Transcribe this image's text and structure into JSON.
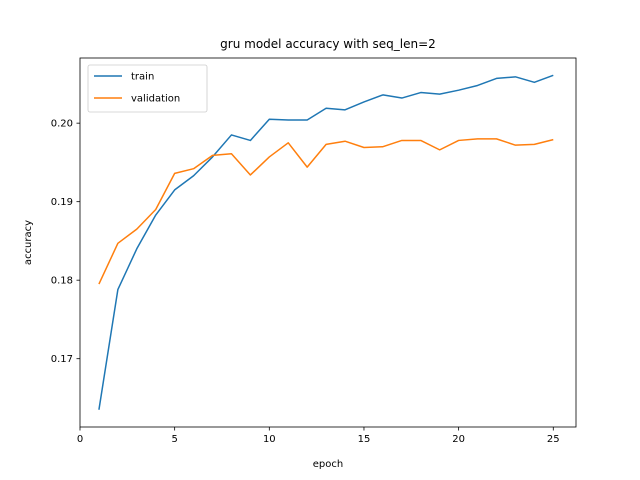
{
  "chart_data": {
    "type": "line",
    "title": "gru model accuracy with seq_len=2",
    "xlabel": "epoch",
    "ylabel": "accuracy",
    "xlim": [
      0,
      26.2
    ],
    "ylim": [
      0.1613,
      0.2083
    ],
    "xticks": [
      0,
      5,
      10,
      15,
      20,
      25
    ],
    "yticks": [
      0.17,
      0.18,
      0.19,
      0.2
    ],
    "ytick_labels": [
      "0.17",
      "0.18",
      "0.19",
      "0.20"
    ],
    "grid": false,
    "legend_position": "top-left",
    "x": [
      1,
      2,
      3,
      4,
      5,
      6,
      7,
      8,
      9,
      10,
      11,
      12,
      13,
      14,
      15,
      16,
      17,
      18,
      19,
      20,
      21,
      22,
      23,
      24,
      25
    ],
    "series": [
      {
        "name": "train",
        "color": "#1f77b4",
        "values": [
          0.1635,
          0.1788,
          0.184,
          0.1883,
          0.1915,
          0.1933,
          0.1957,
          0.1985,
          0.1978,
          0.2005,
          0.2004,
          0.2004,
          0.2019,
          0.2017,
          0.2027,
          0.2036,
          0.2032,
          0.2039,
          0.2037,
          0.2042,
          0.2048,
          0.2057,
          0.2059,
          0.2052,
          0.2061
        ]
      },
      {
        "name": "validation",
        "color": "#ff7f0e",
        "values": [
          0.1795,
          0.1847,
          0.1865,
          0.189,
          0.1936,
          0.1942,
          0.1959,
          0.1961,
          0.1934,
          0.1957,
          0.1975,
          0.1944,
          0.1973,
          0.1977,
          0.1969,
          0.197,
          0.1978,
          0.1978,
          0.1966,
          0.1978,
          0.198,
          0.198,
          0.1972,
          0.1973,
          0.1979
        ]
      }
    ]
  }
}
